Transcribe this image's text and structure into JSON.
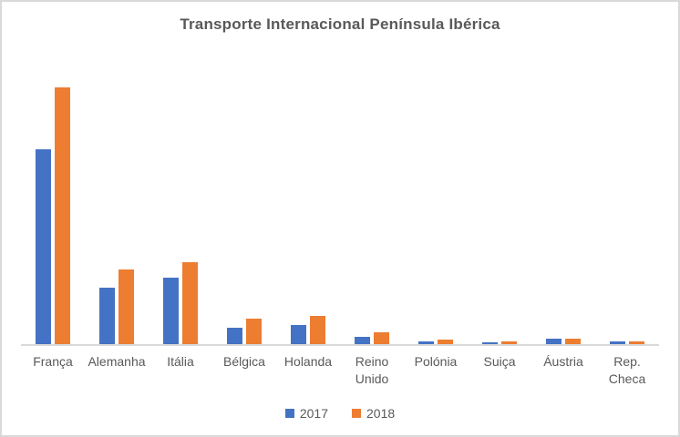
{
  "chart_data": {
    "type": "bar",
    "title": "Transporte Internacional Península Ibérica",
    "categories": [
      "França",
      "Alemanha",
      "Itália",
      "Bélgica",
      "Holanda",
      "Reino\nUnido",
      "Polónia",
      "Suiça",
      "Áustria",
      "Rep.\nCheca"
    ],
    "series": [
      {
        "name": "2017",
        "color": "#4472C4",
        "values": [
          76,
          22,
          26,
          6.5,
          7.5,
          3,
          1.2,
          0.7,
          2,
          0.9
        ]
      },
      {
        "name": "2018",
        "color": "#ED7D31",
        "values": [
          100,
          29,
          32,
          10,
          11,
          4.5,
          1.6,
          1.1,
          2.1,
          1.2
        ]
      }
    ],
    "value_units": "relative scale (no y-axis labels or gridlines shown; tallest bar = 100)",
    "xlabel": "",
    "ylabel": "",
    "ylim": [
      0,
      108
    ],
    "grid": false,
    "y_axis_visible": false,
    "legend_position": "bottom"
  },
  "colors": {
    "background": "#FFFFFF",
    "border": "#D9D9D9",
    "axis_line": "#D9D9D9",
    "text": "#595959",
    "series_2017": "#4472C4",
    "series_2018": "#ED7D31"
  }
}
